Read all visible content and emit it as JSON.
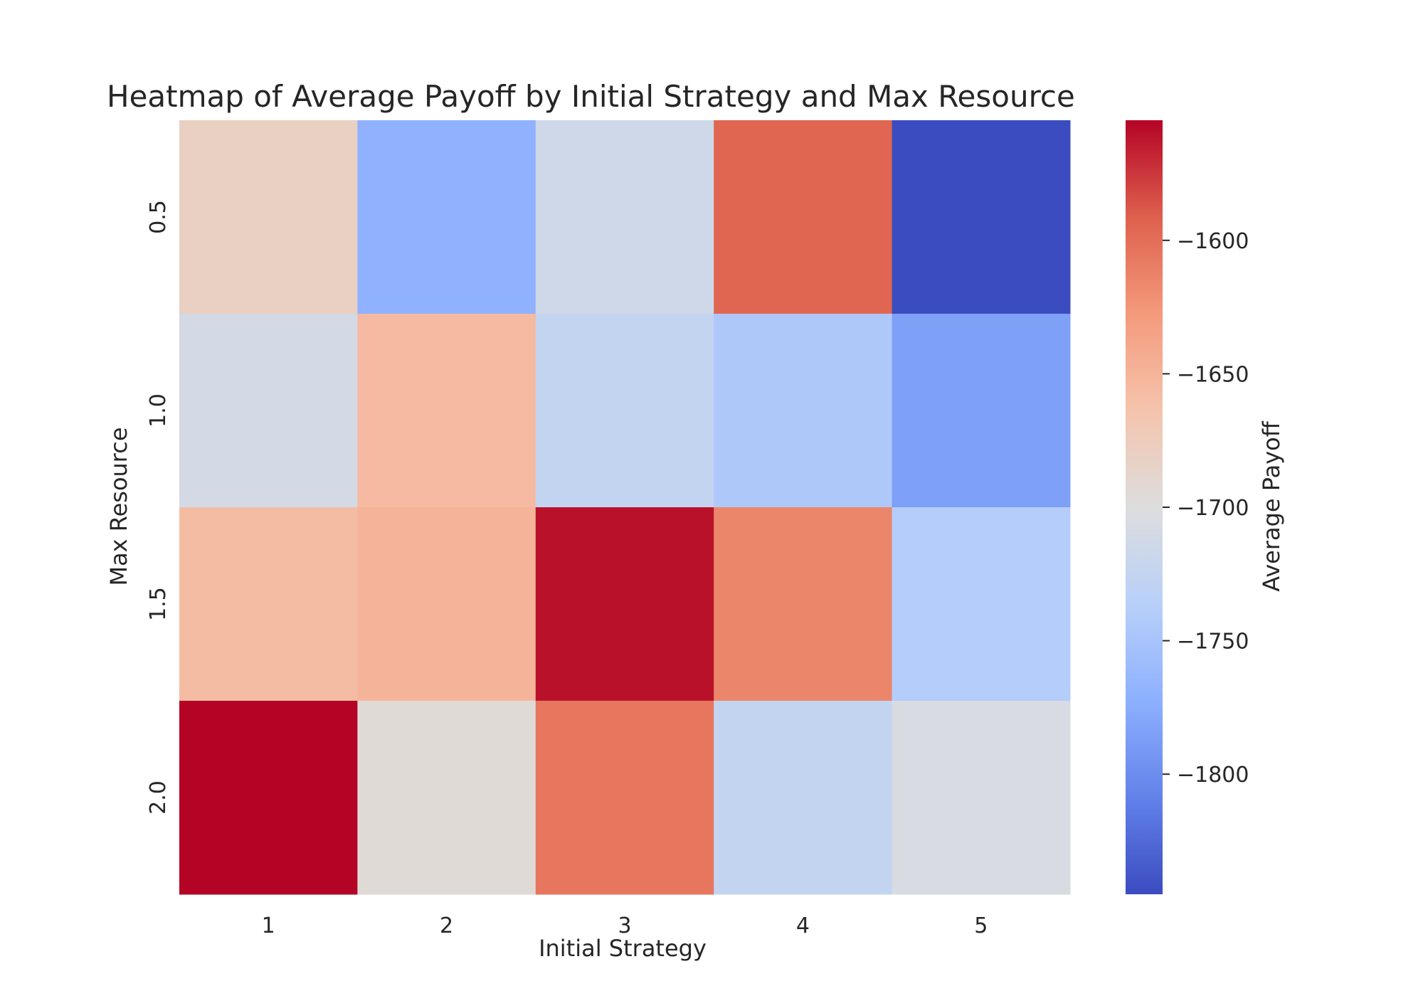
{
  "chart_data": {
    "type": "heatmap",
    "title": "Heatmap of Average Payoff by Initial Strategy and Max Resource",
    "xlabel": "Initial Strategy",
    "ylabel": "Max Resource",
    "x_categories": [
      "1",
      "2",
      "3",
      "4",
      "5"
    ],
    "y_categories": [
      "0.5",
      "1.0",
      "1.5",
      "2.0"
    ],
    "values": [
      [
        -1680,
        -1770,
        -1715,
        -1595,
        -1845
      ],
      [
        -1710,
        -1655,
        -1725,
        -1745,
        -1785
      ],
      [
        -1657,
        -1650,
        -1560,
        -1615,
        -1740
      ],
      [
        -1555,
        -1695,
        -1605,
        -1725,
        -1705
      ]
    ],
    "vmin": -1845,
    "vmax": -1555,
    "colormap": "coolwarm",
    "colorbar": {
      "label": "Average Payoff",
      "ticks": [
        -1600,
        -1650,
        -1700,
        -1750,
        -1800
      ],
      "tick_labels": [
        "−1600",
        "−1650",
        "−1700",
        "−1750",
        "−1800"
      ]
    },
    "grid": false
  }
}
